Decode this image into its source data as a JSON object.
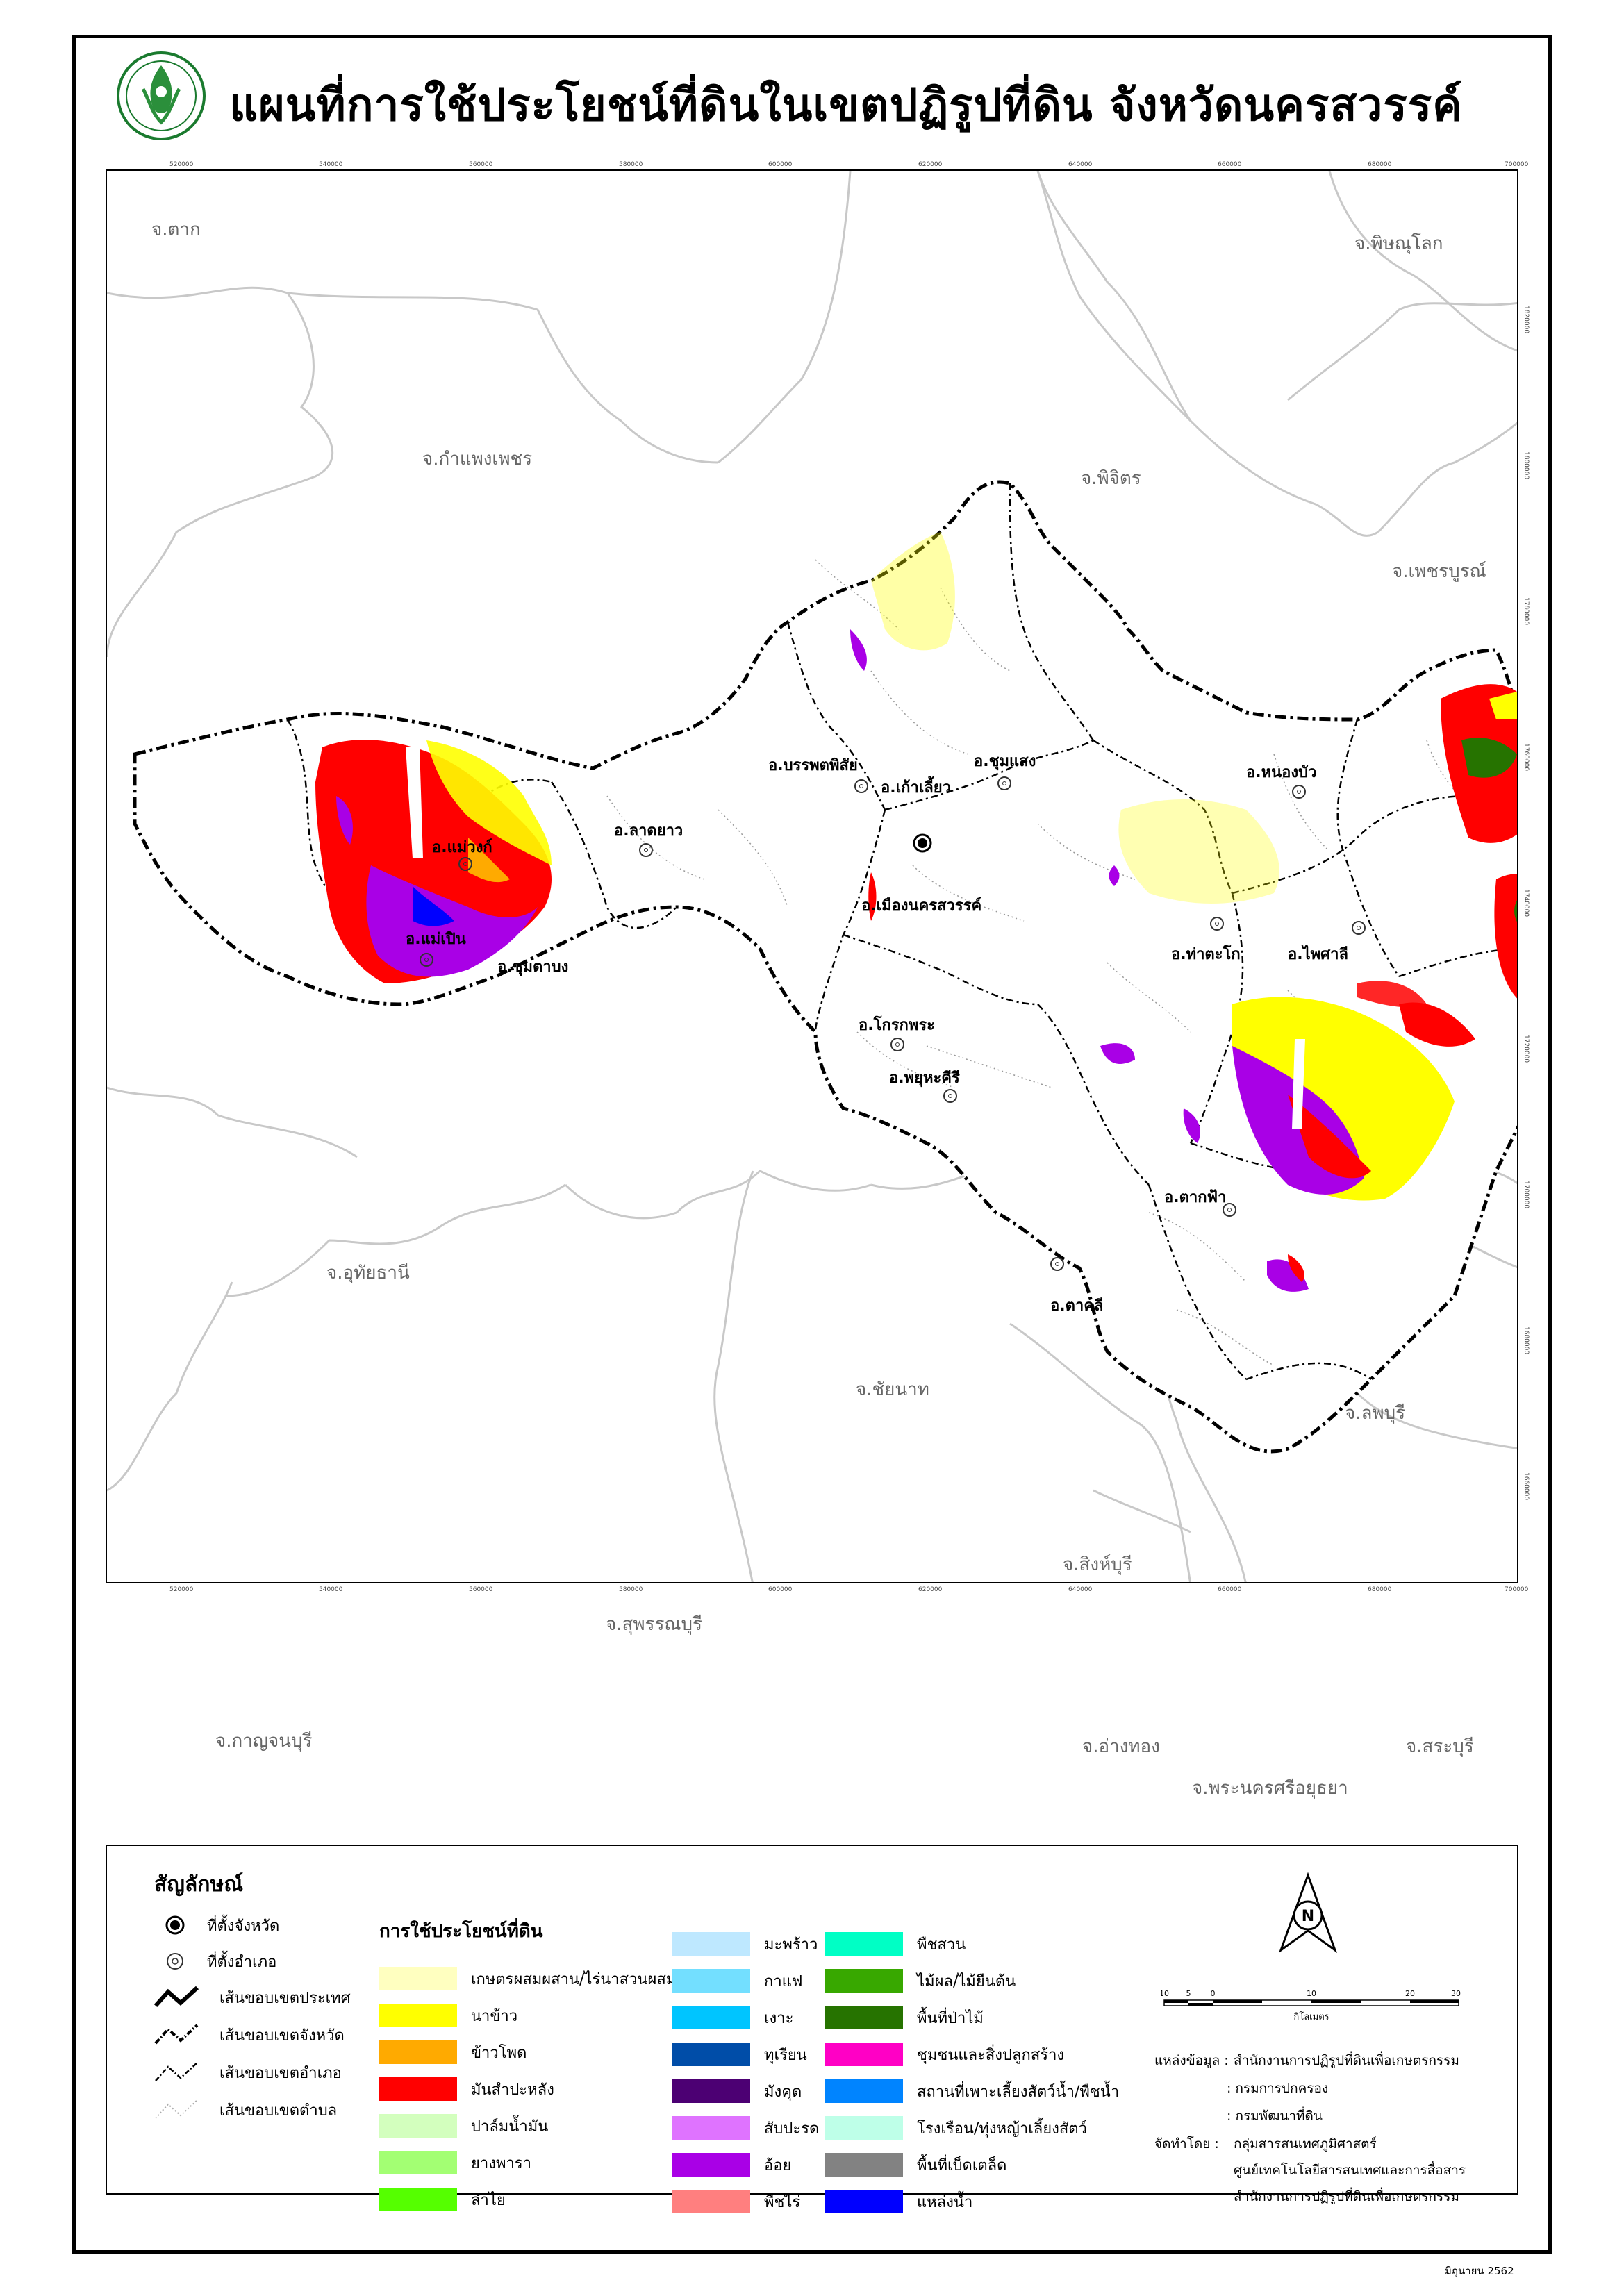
{
  "title": "แผนที่การใช้ประโยชน์ที่ดินในเขตปฏิรูปที่ดิน จังหวัดนครสวรรค์",
  "logo_text": "สำนักงานการปฏิรูปที่ดินเพื่อเกษตรกรรม",
  "x_ticks": [
    "520000",
    "540000",
    "560000",
    "580000",
    "600000",
    "620000",
    "640000",
    "660000",
    "680000",
    "700000"
  ],
  "y_ticks": [
    "1820000",
    "1800000",
    "1780000",
    "1760000",
    "1740000",
    "1720000",
    "1700000",
    "1680000",
    "1660000",
    "1640000",
    "1620000"
  ],
  "provinces": [
    "จ.ตาก",
    "จ.พิษณุโลก",
    "จ.กำแพงเพชร",
    "จ.พิจิตร",
    "จ.เพชรบูรณ์",
    "จ.อุทัยธานี",
    "จ.ชัยนาท",
    "จ.ลพบุรี",
    "จ.สิงห์บุรี",
    "จ.สุพรรณบุรี",
    "จ.กาญจนบุรี",
    "จ.อ่างทอง",
    "จ.สระบุรี",
    "จ.พระนครศรีอยุธยา"
  ],
  "districts": [
    "อ.แม่วงก์",
    "อ.แม่เปิน",
    "อ.ชุมตาบง",
    "อ.ลาดยาว",
    "อ.บรรพตพิสัย",
    "อ.เก้าเลี้ยว",
    "อ.ชุมแสง",
    "อ.หนองบัว",
    "อ.เมืองนครสวรรค์",
    "อ.ท่าตะโก",
    "อ.ไพศาลี",
    "อ.โกรกพระ",
    "อ.พยุหะคีรี",
    "อ.ตากฟ้า",
    "อ.ตาคลี"
  ],
  "legend": {
    "title": "สัญลักษณ์",
    "symbols": [
      "ที่ตั้งจังหวัด",
      "ที่ตั้งอำเภอ",
      "เส้นขอบเขตประเทศ",
      "เส้นขอบเขตจังหวัด",
      "เส้นขอบเขตอำเภอ",
      "เส้นขอบเขตตำบล"
    ],
    "landuse_title": "การใช้ประโยชน์ที่ดิน",
    "landuse": [
      {
        "label": "เกษตรผสมผสาน/ไร่นาสวนผสม",
        "color": "#ffffc0"
      },
      {
        "label": "นาข้าว",
        "color": "#ffff00"
      },
      {
        "label": "ข้าวโพด",
        "color": "#ffaa00"
      },
      {
        "label": "มันสำปะหลัง",
        "color": "#ff0000"
      },
      {
        "label": "ปาล์มน้ำมัน",
        "color": "#d3ffbe"
      },
      {
        "label": "ยางพารา",
        "color": "#a3ff73"
      },
      {
        "label": "ลำไย",
        "color": "#55ff00"
      },
      {
        "label": "มะพร้าว",
        "color": "#bee8ff"
      },
      {
        "label": "กาแฟ",
        "color": "#73dfff"
      },
      {
        "label": "เงาะ",
        "color": "#00c5ff"
      },
      {
        "label": "ทุเรียน",
        "color": "#004da8"
      },
      {
        "label": "มังคุด",
        "color": "#4c0073"
      },
      {
        "label": "สับปะรด",
        "color": "#df73ff"
      },
      {
        "label": "อ้อย",
        "color": "#a900e6"
      },
      {
        "label": "พืชไร่",
        "color": "#ff7f7f"
      },
      {
        "label": "พืชสวน",
        "color": "#00ffc5"
      },
      {
        "label": "ไม้ผล/ไม้ยืนต้น",
        "color": "#38a800"
      },
      {
        "label": "พื้นที่ป่าไม้",
        "color": "#267300"
      },
      {
        "label": "ชุมชนและสิ่งปลูกสร้าง",
        "color": "#ff00c5"
      },
      {
        "label": "สถานที่เพาะเลี้ยงสัตว์น้ำ/พืชน้ำ",
        "color": "#0084ff"
      },
      {
        "label": "โรงเรือน/ทุ่งหญ้าเลี้ยงสัตว์",
        "color": "#beffe8"
      },
      {
        "label": "พื้นที่เบ็ดเตล็ด",
        "color": "#828282"
      },
      {
        "label": "แหล่งน้ำ",
        "color": "#0000ff"
      }
    ]
  },
  "scale": {
    "labels": [
      "10",
      "5",
      "0",
      "10",
      "20",
      "30"
    ],
    "unit": "กิโลเมตร"
  },
  "north_label": "N",
  "source": {
    "data_label": "แหล่งข้อมูล :",
    "data_lines": [
      "สำนักงานการปฏิรูปที่ดินเพื่อเกษตรกรรม",
      ": กรมการปกครอง",
      ": กรมพัฒนาที่ดิน"
    ],
    "by_label": "จัดทำโดย :",
    "by_lines": [
      "กลุ่มสารสนเทศภูมิศาสตร์",
      "ศูนย์เทคโนโลยีสารสนเทศและการสื่อสาร",
      "สำนักงานการปฏิรูปที่ดินเพื่อเกษตรกรรม"
    ]
  },
  "date": "มิถุนายน 2562"
}
